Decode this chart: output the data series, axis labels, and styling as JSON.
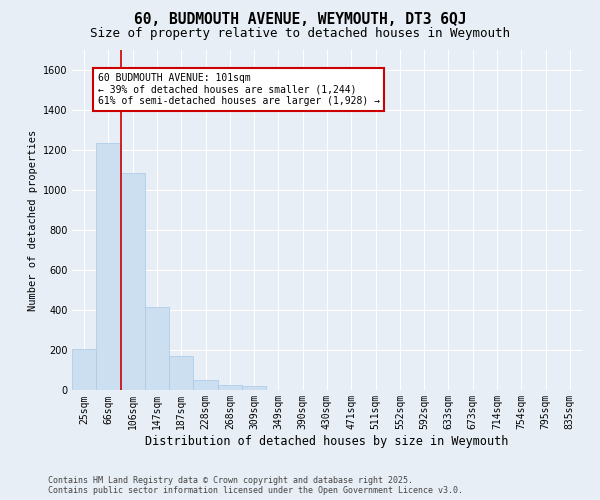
{
  "title": "60, BUDMOUTH AVENUE, WEYMOUTH, DT3 6QJ",
  "subtitle": "Size of property relative to detached houses in Weymouth",
  "xlabel": "Distribution of detached houses by size in Weymouth",
  "ylabel": "Number of detached properties",
  "categories": [
    "25sqm",
    "66sqm",
    "106sqm",
    "147sqm",
    "187sqm",
    "228sqm",
    "268sqm",
    "309sqm",
    "349sqm",
    "390sqm",
    "430sqm",
    "471sqm",
    "511sqm",
    "552sqm",
    "592sqm",
    "633sqm",
    "673sqm",
    "714sqm",
    "754sqm",
    "795sqm",
    "835sqm"
  ],
  "values": [
    203,
    1234,
    1085,
    413,
    170,
    50,
    25,
    20,
    0,
    0,
    0,
    0,
    0,
    0,
    0,
    0,
    0,
    0,
    0,
    0,
    0
  ],
  "bar_color": "#ccdff0",
  "bar_edgecolor": "#a8c8e8",
  "vline_position": 1.5,
  "vline_color": "#cc0000",
  "annotation_text": "60 BUDMOUTH AVENUE: 101sqm\n← 39% of detached houses are smaller (1,244)\n61% of semi-detached houses are larger (1,928) →",
  "annotation_box_facecolor": "#ffffff",
  "annotation_box_edgecolor": "#cc0000",
  "ylim": [
    0,
    1700
  ],
  "yticks": [
    0,
    200,
    400,
    600,
    800,
    1000,
    1200,
    1400,
    1600
  ],
  "bg_color": "#e8eef5",
  "grid_color": "#ffffff",
  "footer": "Contains HM Land Registry data © Crown copyright and database right 2025.\nContains public sector information licensed under the Open Government Licence v3.0.",
  "title_fontsize": 10.5,
  "subtitle_fontsize": 9,
  "xlabel_fontsize": 8.5,
  "ylabel_fontsize": 7.5,
  "annot_fontsize": 7,
  "tick_fontsize": 7,
  "footer_fontsize": 6
}
